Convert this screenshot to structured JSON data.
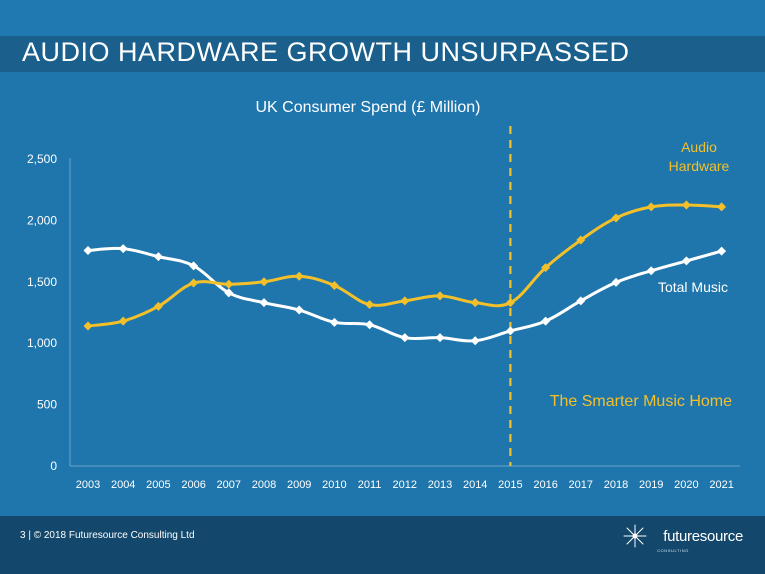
{
  "slide": {
    "title": "AUDIO HARDWARE GROWTH UNSURPASSED",
    "footer_text": "3  |  © 2018 Futuresource Consulting Ltd",
    "logo_text": "futuresource",
    "logo_subtext": "CONSULTING"
  },
  "colors": {
    "background": "#1f76ad",
    "title_bar": "#1b5f8c",
    "footer": "#13486c",
    "audio_hardware": "#f3c02a",
    "total_music": "#ffffff"
  },
  "chart_data": {
    "type": "line",
    "title": "UK Consumer Spend (£ Million)",
    "xlabel": "",
    "ylabel": "",
    "x": [
      "2003",
      "2004",
      "2005",
      "2006",
      "2007",
      "2008",
      "2009",
      "2010",
      "2011",
      "2012",
      "2013",
      "2014",
      "2015",
      "2016",
      "2017",
      "2018",
      "2019",
      "2020",
      "2021"
    ],
    "ylim": [
      0,
      2500
    ],
    "yticks": [
      0,
      500,
      1000,
      1500,
      2000,
      2500
    ],
    "ytick_labels": [
      "0",
      "500",
      "1,000",
      "1,500",
      "2,000",
      "2,500"
    ],
    "grid": false,
    "series": [
      {
        "name": "Audio Hardware",
        "label_lines": [
          "Audio",
          "Hardware"
        ],
        "values": [
          1140,
          1180,
          1300,
          1490,
          1480,
          1500,
          1545,
          1470,
          1315,
          1345,
          1385,
          1330,
          1330,
          1615,
          1840,
          2020,
          2110,
          2125,
          2110
        ]
      },
      {
        "name": "Total Music",
        "label_lines": [
          "Total Music"
        ],
        "values": [
          1755,
          1770,
          1705,
          1630,
          1410,
          1330,
          1270,
          1170,
          1150,
          1045,
          1045,
          1020,
          1100,
          1180,
          1345,
          1495,
          1590,
          1670,
          1750
        ]
      }
    ],
    "annotations": [
      {
        "text": "The Smarter Music Home",
        "x": "2015"
      }
    ]
  }
}
